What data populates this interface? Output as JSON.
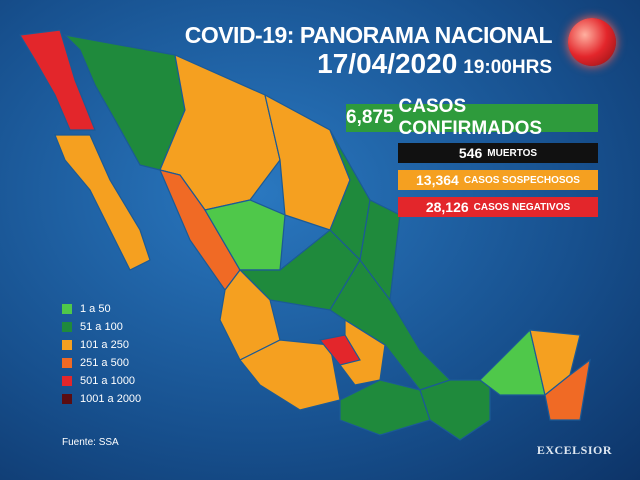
{
  "header": {
    "title": "COVID-19: PANORAMA NACIONAL",
    "date": "17/04/2020",
    "time": "19:00HRS"
  },
  "stats": [
    {
      "number": "6,875",
      "label": "CASOS CONFIRMADOS",
      "color": "#2e9b3c"
    },
    {
      "number": "546",
      "label": "MUERTOS",
      "color": "#111111"
    },
    {
      "number": "13,364",
      "label": "CASOS SOSPECHOSOS",
      "color": "#f5a020"
    },
    {
      "number": "28,126",
      "label": "CASOS NEGATIVOS",
      "color": "#e3262b"
    }
  ],
  "legend": [
    {
      "label": "1 a 50",
      "color": "#4fc84a"
    },
    {
      "label": "51 a 100",
      "color": "#1f8a3c"
    },
    {
      "label": "101 a 250",
      "color": "#f5a020"
    },
    {
      "label": "251 a 500",
      "color": "#f06a25"
    },
    {
      "label": "501 a 1000",
      "color": "#e3262b"
    },
    {
      "label": "1001 a 2000",
      "color": "#5a0d12"
    }
  ],
  "source": "Fuente: SSA",
  "brand": "EXCELSIOR"
}
